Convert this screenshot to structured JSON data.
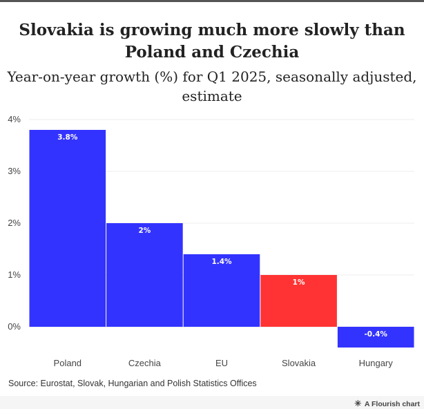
{
  "title": "Slovakia is growing much more slowly than Poland and Czechia",
  "subtitle": "Year-on-year growth (%) for Q1 2025, seasonally adjusted, estimate",
  "source": "Source: Eurostat, Slovak, Hungarian and Polish Statistics Offices",
  "credit": {
    "icon": "flourish-logo-icon",
    "label": "A Flourish chart"
  },
  "colors": {
    "default_bar": "#3333ff",
    "highlight_bar": "#ff3333",
    "axis_text": "#444444",
    "grid": "#eeeeee"
  },
  "chart_data": {
    "type": "bar",
    "categories": [
      "Poland",
      "Czechia",
      "EU",
      "Slovakia",
      "Hungary"
    ],
    "values": [
      3.8,
      2,
      1.4,
      1,
      -0.4
    ],
    "data_labels": [
      "3.8%",
      "2%",
      "1.4%",
      "1%",
      "-0.4%"
    ],
    "highlight": [
      "Slovakia"
    ],
    "ylim": [
      -0.5,
      4
    ],
    "yticks": [
      0,
      1,
      2,
      3,
      4
    ],
    "ytick_labels": [
      "0%",
      "1%",
      "2%",
      "3%",
      "4%"
    ],
    "grid": true,
    "xlabel": "",
    "ylabel": ""
  }
}
